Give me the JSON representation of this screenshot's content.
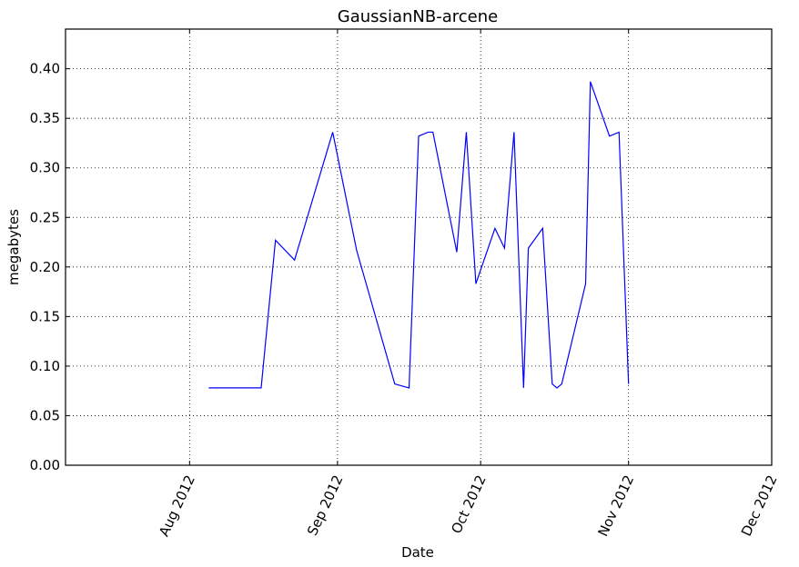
{
  "chart_data": {
    "type": "line",
    "title": "GaussianNB-arcene",
    "xlabel": "Date",
    "ylabel": "megabytes",
    "x_axis_type": "date",
    "xlim": [
      "2012-07-06",
      "2012-12-01"
    ],
    "ylim": [
      0,
      0.44
    ],
    "grid": true,
    "x_ticks": [
      {
        "date": "2012-08-01",
        "label": "Aug 2012"
      },
      {
        "date": "2012-09-01",
        "label": "Sep 2012"
      },
      {
        "date": "2012-10-01",
        "label": "Oct 2012"
      },
      {
        "date": "2012-11-01",
        "label": "Nov 2012"
      },
      {
        "date": "2012-12-01",
        "label": "Dec 2012"
      }
    ],
    "y_ticks": [
      {
        "value": 0.0,
        "label": "0.00"
      },
      {
        "value": 0.05,
        "label": "0.05"
      },
      {
        "value": 0.1,
        "label": "0.10"
      },
      {
        "value": 0.15,
        "label": "0.15"
      },
      {
        "value": 0.2,
        "label": "0.20"
      },
      {
        "value": 0.25,
        "label": "0.25"
      },
      {
        "value": 0.3,
        "label": "0.30"
      },
      {
        "value": 0.35,
        "label": "0.35"
      },
      {
        "value": 0.4,
        "label": "0.40"
      }
    ],
    "series": [
      {
        "color": "#0000ff",
        "x": [
          "2012-08-05",
          "2012-08-16",
          "2012-08-19",
          "2012-08-23",
          "2012-08-31",
          "2012-09-05",
          "2012-09-13",
          "2012-09-16",
          "2012-09-18",
          "2012-09-20",
          "2012-09-21",
          "2012-09-26",
          "2012-09-28",
          "2012-09-30",
          "2012-10-04",
          "2012-10-06",
          "2012-10-08",
          "2012-10-10",
          "2012-10-11",
          "2012-10-14",
          "2012-10-16",
          "2012-10-17",
          "2012-10-18",
          "2012-10-23",
          "2012-10-24",
          "2012-10-28",
          "2012-10-30",
          "2012-11-01"
        ],
        "y": [
          0.078,
          0.078,
          0.227,
          0.207,
          0.336,
          0.217,
          0.082,
          0.078,
          0.332,
          0.336,
          0.336,
          0.215,
          0.336,
          0.183,
          0.239,
          0.219,
          0.336,
          0.078,
          0.219,
          0.239,
          0.082,
          0.078,
          0.082,
          0.183,
          0.387,
          0.332,
          0.336,
          0.082
        ]
      }
    ]
  }
}
